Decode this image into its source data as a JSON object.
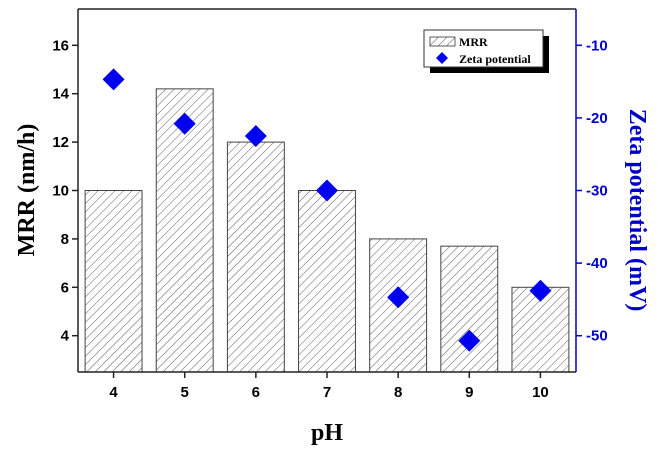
{
  "chart_data": {
    "type": "bar",
    "title": "",
    "xlabel": "pH",
    "ylabel": "MRR (nm/h)",
    "y2label": "Zeta potential (mV)",
    "categories": [
      4,
      5,
      6,
      7,
      8,
      9,
      10
    ],
    "xlim": [
      3.5,
      10.5
    ],
    "ylim": [
      2.5,
      17.5
    ],
    "y2lim": [
      -55,
      -5
    ],
    "yticks": [
      4,
      6,
      8,
      10,
      12,
      14,
      16
    ],
    "y2ticks": [
      -10,
      -20,
      -30,
      -40,
      -50
    ],
    "grid": false,
    "legend_position": "top-right",
    "series": [
      {
        "name": "MRR",
        "type": "bar",
        "axis": "left",
        "pattern": "hatch",
        "values": [
          10,
          14.2,
          12,
          10,
          8,
          7.7,
          6
        ]
      },
      {
        "name": "Zeta potential",
        "type": "scatter",
        "axis": "right",
        "marker": "diamond",
        "color": "#0000ee",
        "values": [
          -14.7,
          -20.8,
          -22.5,
          -30,
          -44.7,
          -50.7,
          -43.8
        ]
      }
    ],
    "colors": {
      "right_axis": "#0000cc",
      "marker": "#0000ee"
    }
  }
}
